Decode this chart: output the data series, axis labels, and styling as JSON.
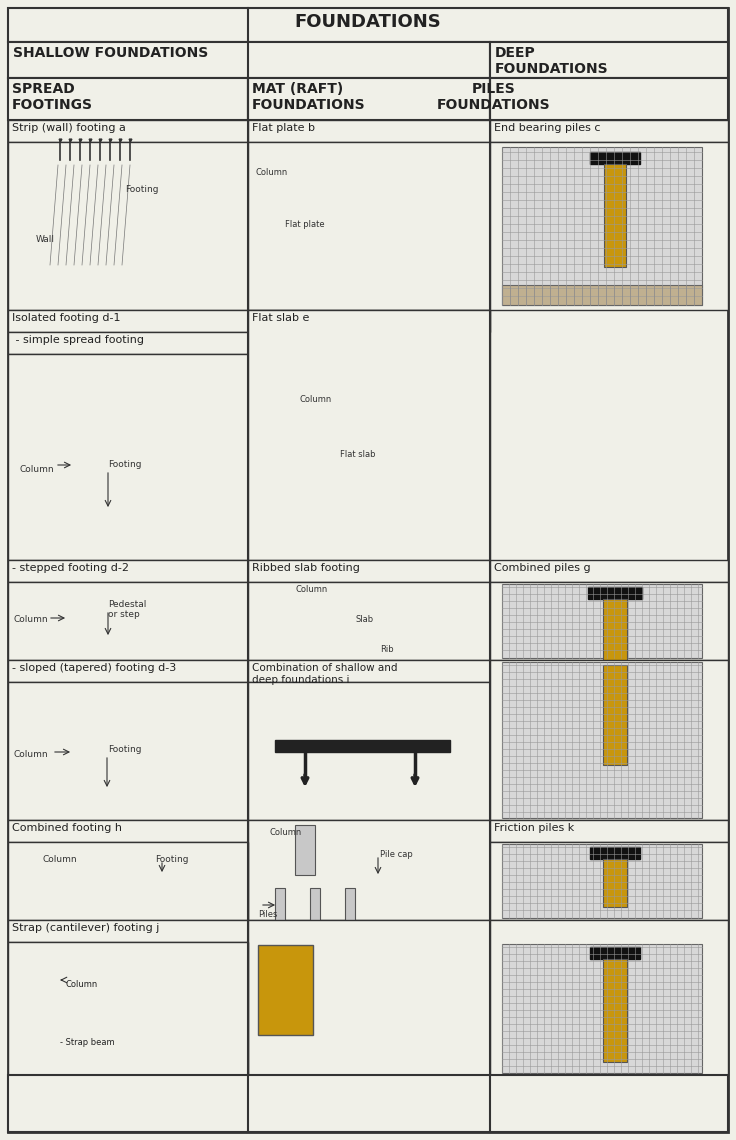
{
  "bg_color": "#f0f0e8",
  "border_color": "#555555",
  "title": "FOUNDATIONS",
  "col1_header": "SHALLOW FOUNDATIONS",
  "col2_header": "",
  "col3_header": "DEEP\nFOUNDATIONS",
  "row2_col1": "SPREAD\nFOOTINGS",
  "row2_col2": "MAT (RAFT)\nFOUNDATIONS",
  "row2_col3": "PILES\nFOUNDATIONS",
  "cell_labels": [
    "Strip (wall) footing a",
    "Flat plate b",
    "End bearing piles c",
    "Isolated footing d-1",
    "Flat slab e",
    "",
    "- simple spread footing",
    "",
    "",
    "- stepped footing d-2",
    "Ribbed slab footing",
    "Combined piles g",
    "- sloped (tapered) footing d-3",
    "Combination of shallow and\ndeep foundations i",
    "",
    "Combined footing h",
    "",
    "Friction piles k",
    "Strap (cantilever) footing j",
    "",
    ""
  ],
  "gold_color": "#C8960C",
  "gray_color": "#A0A0A0",
  "dark_color": "#333333",
  "line_color": "#333333",
  "grid_color": "#888888"
}
